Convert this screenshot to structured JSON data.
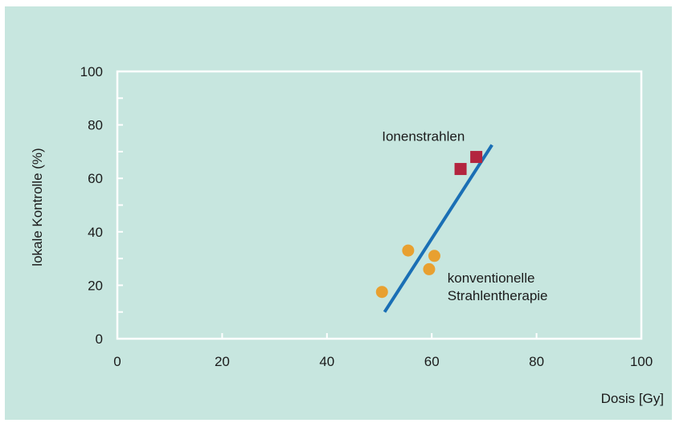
{
  "chart_data": {
    "type": "scatter",
    "title": "",
    "xlabel": "Dosis [Gy]",
    "ylabel": "lokale Kontrolle (%)",
    "xlim": [
      0,
      100
    ],
    "ylim": [
      0,
      100
    ],
    "xticks": [
      0,
      20,
      40,
      60,
      80,
      100
    ],
    "yticks": [
      0,
      20,
      40,
      60,
      80,
      100
    ],
    "grid": false,
    "series": [
      {
        "name": "konventionelle Strahlentherapie",
        "marker": "circle",
        "color": "#e8a030",
        "points": [
          {
            "x": 50.5,
            "y": 17.5
          },
          {
            "x": 55.5,
            "y": 33
          },
          {
            "x": 59.5,
            "y": 26
          },
          {
            "x": 60.5,
            "y": 31
          }
        ]
      },
      {
        "name": "Ionenstrahlen",
        "marker": "square",
        "color": "#b3253f",
        "points": [
          {
            "x": 65.5,
            "y": 63.5
          },
          {
            "x": 68.5,
            "y": 68
          }
        ]
      }
    ],
    "trendline": {
      "color": "#1a6fb5",
      "from": {
        "x": 51,
        "y": 10
      },
      "to": {
        "x": 71.5,
        "y": 72.5
      }
    },
    "annotations": [
      {
        "lines": [
          "Ionenstrahlen"
        ],
        "x": 50.5,
        "y": 74
      },
      {
        "lines": [
          "konventionelle",
          "Strahlentherapie"
        ],
        "x": 63,
        "y": 21
      }
    ],
    "colors": {
      "background": "#c7e6df",
      "axes": "#ffffff",
      "text": "#1b1b1b"
    }
  }
}
